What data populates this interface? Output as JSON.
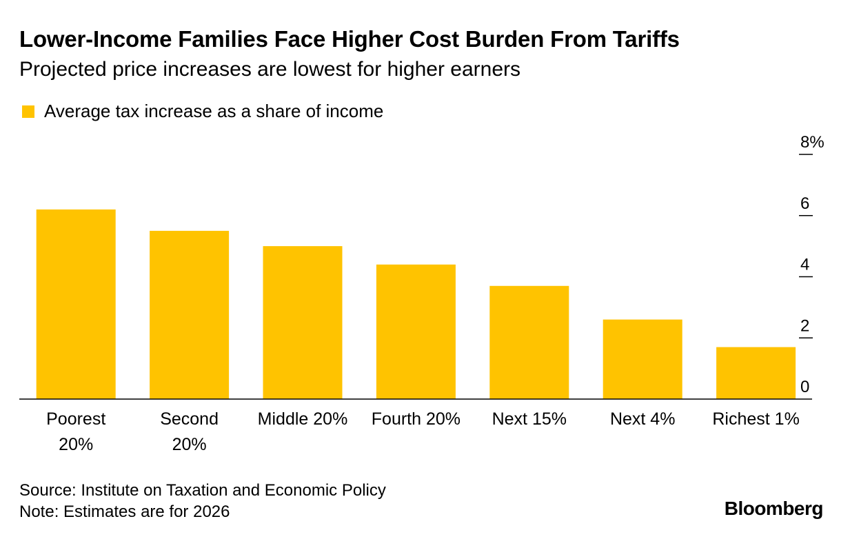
{
  "title": "Lower-Income Families Face Higher Cost Burden From Tariffs",
  "subtitle": "Projected price increases are lowest for higher earners",
  "legend_label": "Average tax increase as a share of income",
  "bar_color": "#FFC300",
  "source": "Source: Institute on Taxation and Economic Policy",
  "note": "Note: Estimates are for 2026",
  "brand": "Bloomberg",
  "chart_data": {
    "type": "bar",
    "title": "Lower-Income Families Face Higher Cost Burden From Tariffs",
    "subtitle": "Projected price increases are lowest for higher earners",
    "xlabel": "",
    "ylabel": "",
    "categories": [
      [
        "Poorest",
        "20%"
      ],
      [
        "Second",
        "20%"
      ],
      [
        "Middle 20%"
      ],
      [
        "Fourth 20%"
      ],
      [
        "Next 15%"
      ],
      [
        "Next 4%"
      ],
      [
        "Richest 1%"
      ]
    ],
    "series": [
      {
        "name": "Average tax increase as a share of income",
        "values": [
          6.2,
          5.5,
          5.0,
          4.4,
          3.7,
          2.6,
          1.7
        ]
      }
    ],
    "ylim": [
      0,
      8
    ],
    "yticks": [
      {
        "value": 0,
        "label": "0"
      },
      {
        "value": 2,
        "label": "2"
      },
      {
        "value": 4,
        "label": "4"
      },
      {
        "value": 6,
        "label": "6"
      },
      {
        "value": 8,
        "label": "8%"
      }
    ],
    "grid": false,
    "axis_side": "right",
    "legend_position": "top-left"
  }
}
